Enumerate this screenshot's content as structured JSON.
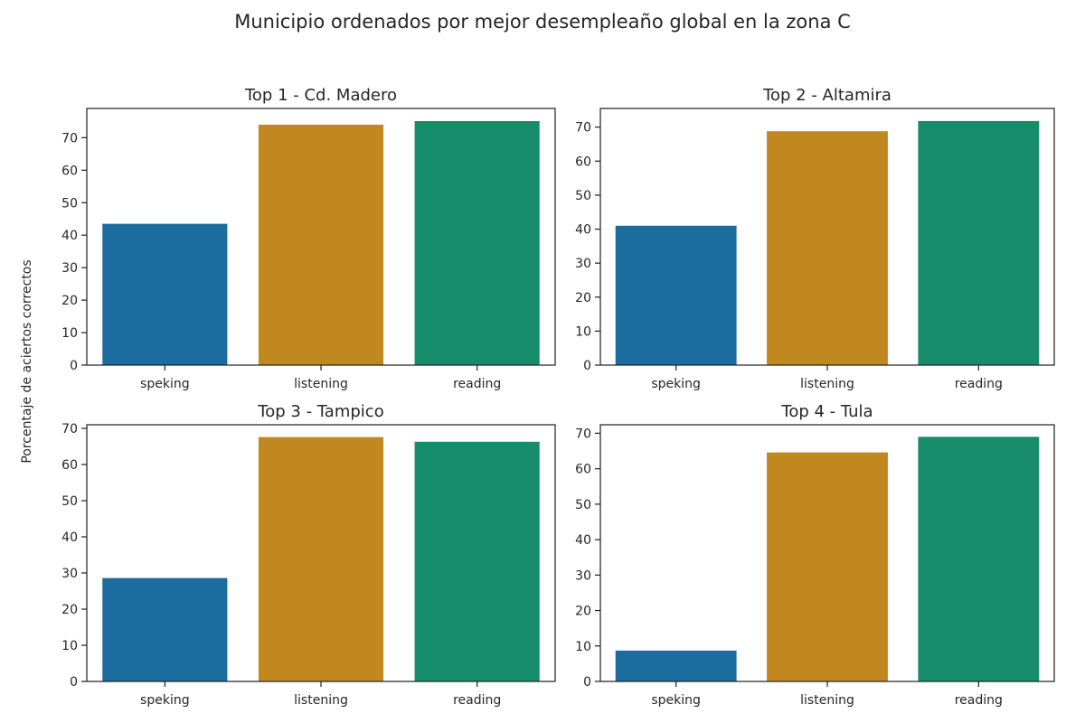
{
  "suptitle": "Municipio ordenados por mejor desempleaño global en la zona C",
  "ylabel": "Porcentaje de aciertos correctos",
  "colors": {
    "speking": "#1a6d9e",
    "listening": "#c28820",
    "reading": "#178c6a",
    "axis": "#262626",
    "text": "#262626"
  },
  "chart_data": [
    {
      "type": "bar",
      "title": "Top  1 - Cd. Madero",
      "categories": [
        "speking",
        "listening",
        "reading"
      ],
      "values": [
        43.5,
        74.0,
        75.1
      ],
      "ylim": [
        0,
        79
      ],
      "yticks": [
        0,
        10,
        20,
        30,
        40,
        50,
        60,
        70
      ],
      "grid": false
    },
    {
      "type": "bar",
      "title": "Top  2 - Altamira",
      "categories": [
        "speking",
        "listening",
        "reading"
      ],
      "values": [
        41.0,
        68.8,
        71.8
      ],
      "ylim": [
        0,
        75.5
      ],
      "yticks": [
        0,
        10,
        20,
        30,
        40,
        50,
        60,
        70
      ],
      "grid": false
    },
    {
      "type": "bar",
      "title": "Top  3 - Tampico",
      "categories": [
        "speking",
        "listening",
        "reading"
      ],
      "values": [
        28.6,
        67.6,
        66.3
      ],
      "ylim": [
        0,
        71
      ],
      "yticks": [
        0,
        10,
        20,
        30,
        40,
        50,
        60,
        70
      ],
      "grid": false
    },
    {
      "type": "bar",
      "title": "Top  4 - Tula",
      "categories": [
        "speking",
        "listening",
        "reading"
      ],
      "values": [
        8.7,
        64.6,
        69.0
      ],
      "ylim": [
        0,
        72.4
      ],
      "yticks": [
        0,
        10,
        20,
        30,
        40,
        50,
        60,
        70
      ],
      "grid": false
    }
  ]
}
